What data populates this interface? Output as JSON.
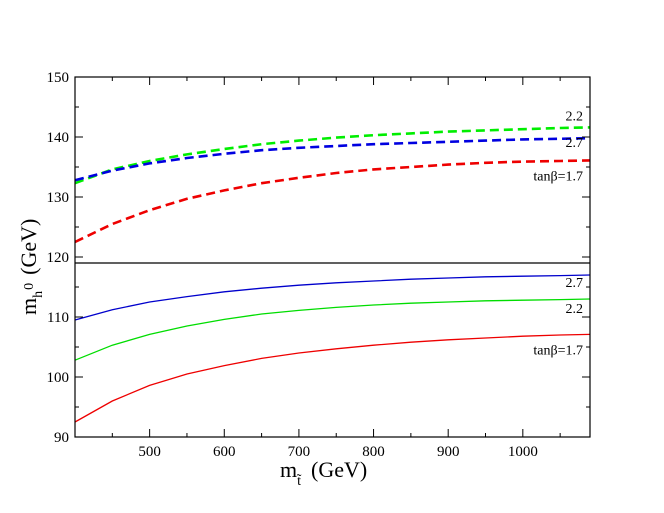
{
  "chart_data": {
    "type": "line",
    "xlabel": {
      "main": "m",
      "sub": "t̃",
      "units": "(GeV)"
    },
    "ylabel": {
      "main": "m",
      "sub": "h",
      "sup": "0",
      "units": "(GeV)"
    },
    "xlim": [
      400,
      1090
    ],
    "ylim": [
      90,
      150
    ],
    "divider_y": 119,
    "xticks": [
      500,
      600,
      700,
      800,
      900,
      1000
    ],
    "yticks": [
      90,
      100,
      110,
      120,
      130,
      140,
      150
    ],
    "x": [
      400,
      450,
      500,
      550,
      600,
      650,
      700,
      750,
      800,
      850,
      900,
      950,
      1000,
      1050,
      1090
    ],
    "series": [
      {
        "name": "upper-2.2",
        "label": "2.2",
        "color": "#00ee00",
        "dashed": true,
        "values": [
          132.3,
          134.6,
          136.0,
          137.1,
          138.0,
          138.8,
          139.4,
          139.9,
          140.3,
          140.6,
          140.9,
          141.1,
          141.3,
          141.5,
          141.6
        ]
      },
      {
        "name": "upper-2.7",
        "label": "2.7",
        "color": "#0000e0",
        "dashed": true,
        "values": [
          132.8,
          134.4,
          135.6,
          136.5,
          137.2,
          137.8,
          138.2,
          138.5,
          138.8,
          139.0,
          139.2,
          139.4,
          139.6,
          139.7,
          139.8
        ]
      },
      {
        "name": "upper-1.7",
        "label": "tanβ=1.7",
        "color": "#ee0000",
        "dashed": true,
        "values": [
          122.5,
          125.5,
          127.8,
          129.7,
          131.1,
          132.3,
          133.2,
          134.0,
          134.6,
          135.0,
          135.4,
          135.7,
          135.9,
          136.0,
          136.1
        ]
      },
      {
        "name": "lower-2.7",
        "label": "2.7",
        "color": "#0000cc",
        "dashed": false,
        "values": [
          109.5,
          111.2,
          112.5,
          113.4,
          114.2,
          114.8,
          115.3,
          115.7,
          116.0,
          116.3,
          116.5,
          116.7,
          116.8,
          116.9,
          117.0
        ]
      },
      {
        "name": "lower-2.2",
        "label": "2.2",
        "color": "#00dd00",
        "dashed": false,
        "values": [
          102.8,
          105.3,
          107.1,
          108.5,
          109.6,
          110.5,
          111.1,
          111.6,
          112.0,
          112.3,
          112.5,
          112.7,
          112.8,
          112.9,
          113.0
        ]
      },
      {
        "name": "lower-1.7",
        "label": "tanβ=1.7",
        "color": "#ee0000",
        "dashed": false,
        "values": [
          92.5,
          96.0,
          98.6,
          100.5,
          101.9,
          103.1,
          104.0,
          104.7,
          105.3,
          105.8,
          106.2,
          106.5,
          106.8,
          107.0,
          107.1
        ]
      }
    ]
  }
}
